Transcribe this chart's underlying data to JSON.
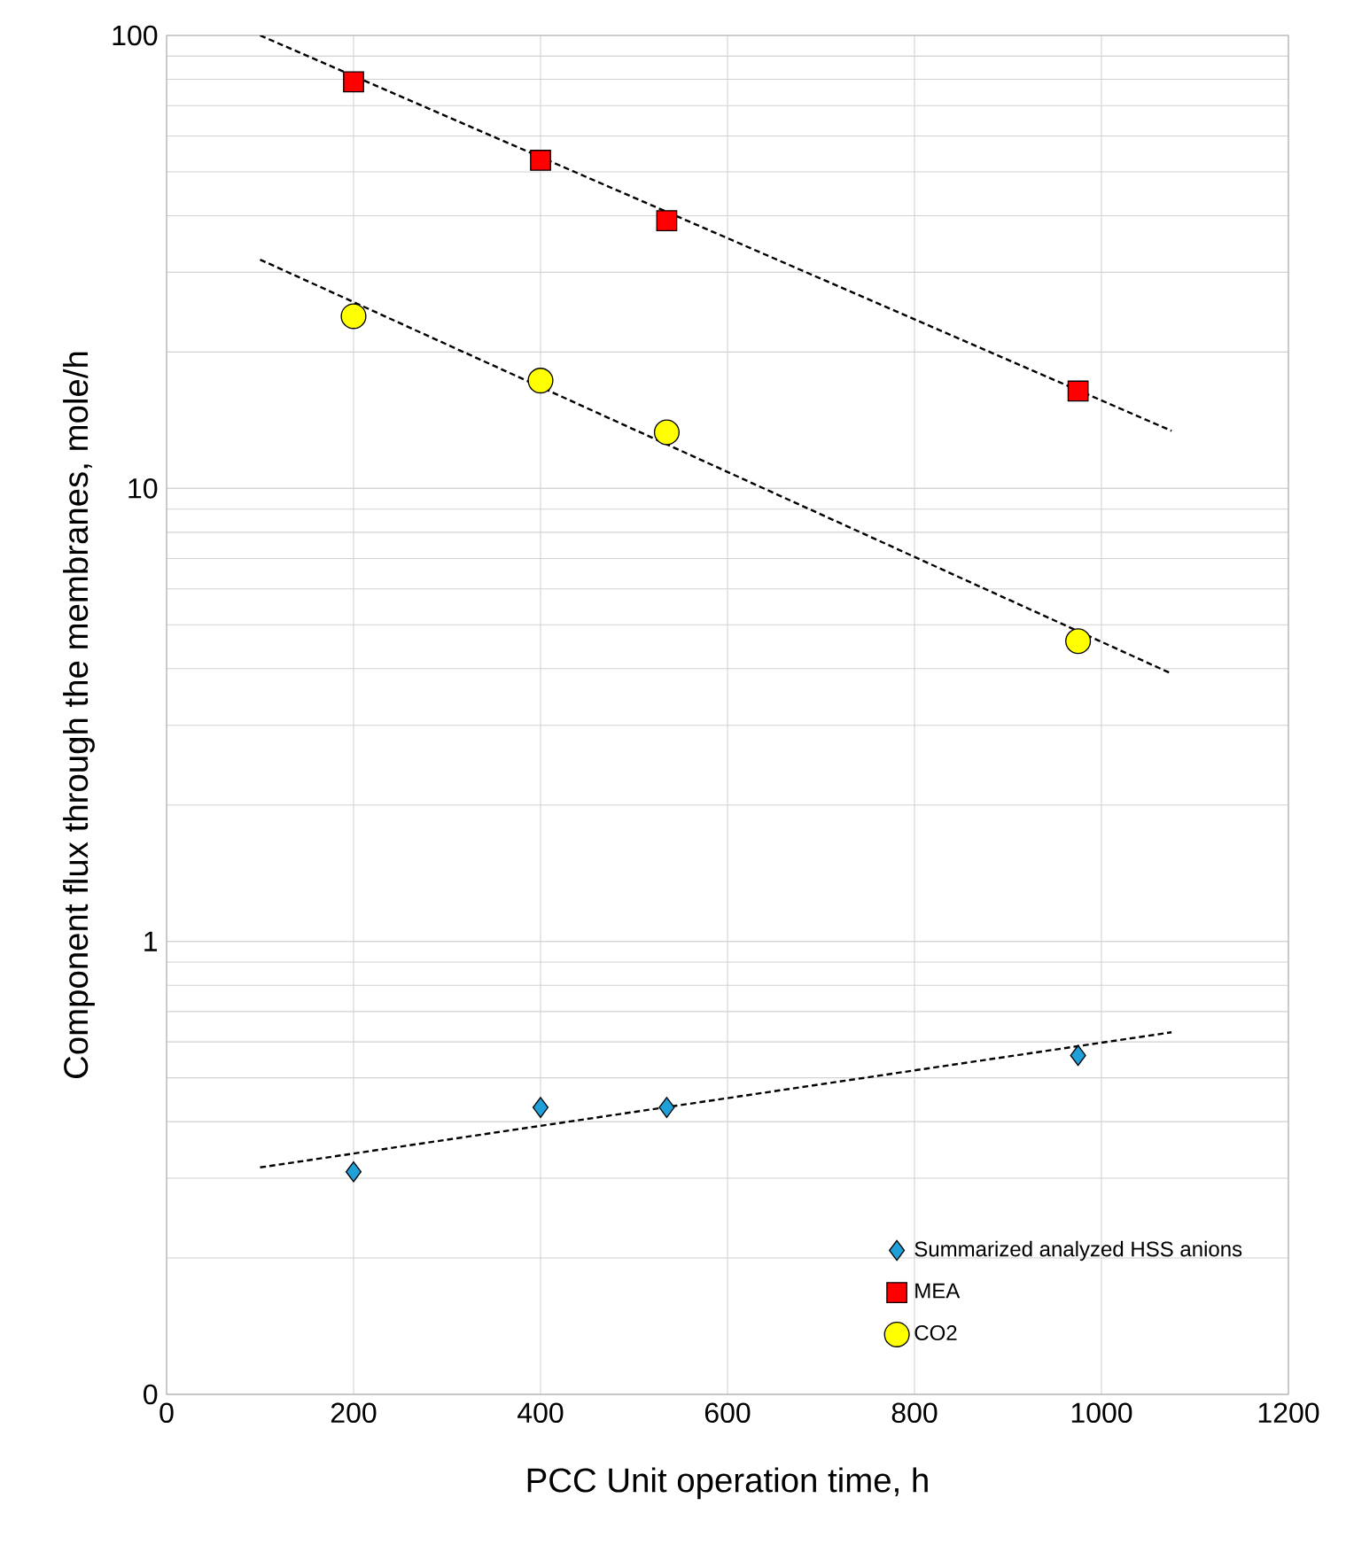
{
  "chart_data": {
    "type": "scatter",
    "xlabel": "PCC Unit operation time, h",
    "ylabel": "Component flux through the membranes, mole/h",
    "log": "y",
    "grid": true,
    "legend": "bottom right",
    "xlim": [
      0,
      1200
    ],
    "xticks": [
      0,
      200,
      400,
      600,
      800,
      1000,
      1200
    ],
    "ylim": [
      0.1,
      100
    ],
    "yticks": [
      {
        "value": 0.1,
        "label": "0"
      },
      1,
      10,
      100
    ],
    "series": [
      {
        "name": "Summarized analyzed HSS anions",
        "color": "#1fa0d8",
        "marker": "diamond",
        "x": [
          200,
          400,
          535,
          975
        ],
        "values": [
          0.31,
          0.43,
          0.43,
          0.56
        ]
      },
      {
        "name": "MEA",
        "color": "#ff0000",
        "marker": "square",
        "x": [
          200,
          400,
          535,
          975
        ],
        "values": [
          79,
          53,
          39,
          16.4
        ]
      },
      {
        "name": "CO2",
        "color": "#ffff00",
        "marker": "circle",
        "x": [
          200,
          400,
          535,
          975
        ],
        "values": [
          24,
          17.3,
          13.3,
          4.6
        ]
      },
      {
        "type": "line",
        "color": "#000000",
        "marker": "none",
        "line_style": "dashed",
        "x": [
          100,
          1075
        ],
        "values": [
          0.317,
          0.63
        ]
      },
      {
        "type": "line",
        "color": "#000000",
        "marker": "none",
        "line_style": "dashed",
        "x": [
          100,
          1075
        ],
        "values": [
          100,
          13.4
        ]
      },
      {
        "type": "line",
        "color": "#000000",
        "marker": "none",
        "line_style": "dashed",
        "x": [
          100,
          1075
        ],
        "values": [
          32,
          3.9
        ]
      }
    ]
  }
}
